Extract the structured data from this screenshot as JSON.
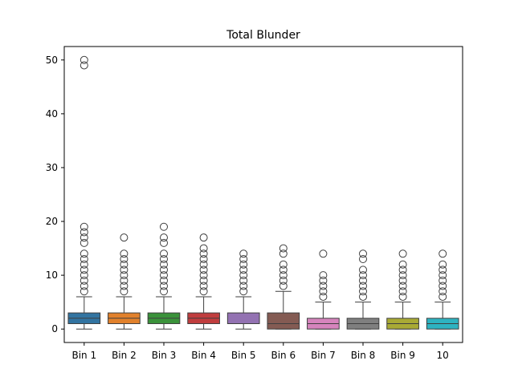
{
  "chart_data": {
    "type": "boxplot",
    "title": "Total Blunder",
    "xlabel": "",
    "ylabel": "",
    "ylim": [
      -2.5,
      52.5
    ],
    "yticks": [
      0,
      10,
      20,
      30,
      40,
      50
    ],
    "grid": false,
    "categories": [
      "Bin 1",
      "Bin 2",
      "Bin 3",
      "Bin 4",
      "Bin 5",
      "Bin 6",
      "Bin 7",
      "Bin 8",
      "Bin 9",
      "10"
    ],
    "colors": [
      "#3274a1",
      "#e1812c",
      "#3a923a",
      "#c03d3e",
      "#9372b2",
      "#845b53",
      "#d684bd",
      "#7f7f7f",
      "#a9aa35",
      "#2eb3c1"
    ],
    "boxes": [
      {
        "min": 0,
        "q1": 1,
        "median": 2,
        "q3": 3,
        "max": 6,
        "outliers": [
          7,
          8,
          9,
          10,
          11,
          12,
          13,
          14,
          16,
          17,
          18,
          19,
          49,
          50
        ]
      },
      {
        "min": 0,
        "q1": 1,
        "median": 2,
        "q3": 3,
        "max": 6,
        "outliers": [
          7,
          8,
          9,
          10,
          11,
          12,
          13,
          14,
          17
        ]
      },
      {
        "min": 0,
        "q1": 1,
        "median": 2,
        "q3": 3,
        "max": 6,
        "outliers": [
          7,
          8,
          9,
          10,
          11,
          12,
          13,
          14,
          16,
          17,
          19
        ]
      },
      {
        "min": 0,
        "q1": 1,
        "median": 2,
        "q3": 3,
        "max": 6,
        "outliers": [
          7,
          8,
          9,
          10,
          11,
          12,
          13,
          14,
          15,
          17
        ]
      },
      {
        "min": 0,
        "q1": 1,
        "median": 1,
        "q3": 3,
        "max": 6,
        "outliers": [
          7,
          8,
          9,
          10,
          11,
          12,
          13,
          14
        ]
      },
      {
        "min": 0,
        "q1": 0,
        "median": 1,
        "q3": 3,
        "max": 7,
        "outliers": [
          8,
          9,
          10,
          11,
          12,
          14,
          15
        ]
      },
      {
        "min": 0,
        "q1": 0,
        "median": 1,
        "q3": 2,
        "max": 5,
        "outliers": [
          6,
          7,
          8,
          9,
          10,
          14
        ]
      },
      {
        "min": 0,
        "q1": 0,
        "median": 1,
        "q3": 2,
        "max": 5,
        "outliers": [
          6,
          7,
          8,
          9,
          10,
          11,
          13,
          14
        ]
      },
      {
        "min": 0,
        "q1": 0,
        "median": 1,
        "q3": 2,
        "max": 5,
        "outliers": [
          6,
          7,
          8,
          9,
          10,
          11,
          12,
          14
        ]
      },
      {
        "min": 0,
        "q1": 0,
        "median": 1,
        "q3": 2,
        "max": 5,
        "outliers": [
          6,
          7,
          8,
          9,
          10,
          11,
          12,
          14
        ]
      }
    ]
  }
}
